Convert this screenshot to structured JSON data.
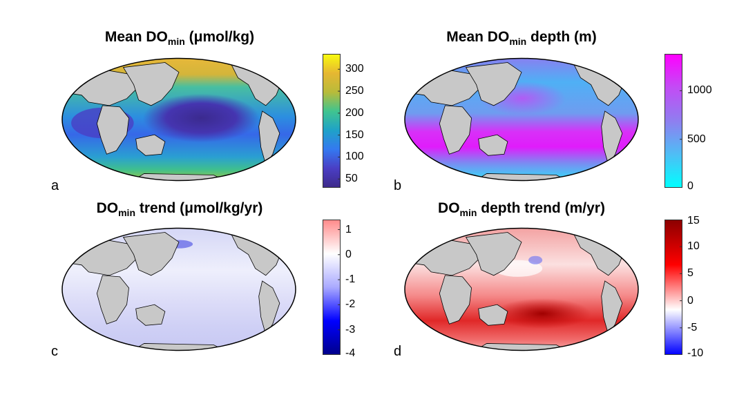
{
  "panels": [
    {
      "letter": "a",
      "title_pre": "Mean DO",
      "title_sub": "min",
      "title_post": " (μmol/kg)",
      "variable": "Mean DOmin",
      "units": "μmol/kg",
      "colorbar": {
        "ticks": [
          "300",
          "250",
          "200",
          "150",
          "100",
          "50"
        ],
        "min": 30,
        "max": 335,
        "tick_values": [
          300,
          250,
          200,
          150,
          100,
          50
        ],
        "colors": [
          "#f9fb0e",
          "#e6b732",
          "#b8bb3a",
          "#40c48f",
          "#1fa2c8",
          "#3479f0",
          "#4a3ec4",
          "#3e2a8a"
        ]
      }
    },
    {
      "letter": "b",
      "title_pre": "Mean DO",
      "title_sub": "min",
      "title_post": " depth (m)",
      "variable": "Mean DOmin depth",
      "units": "m",
      "colorbar": {
        "ticks": [
          "1000",
          "500",
          "0"
        ],
        "min": 0,
        "max": 1380,
        "tick_values": [
          1000,
          500,
          0
        ],
        "colors": [
          "#ff00ff",
          "#c24cf5",
          "#8f7ef0",
          "#4fbdf5",
          "#00ffff"
        ]
      }
    },
    {
      "letter": "c",
      "title_pre": "DO",
      "title_sub": "min",
      "title_post": " trend (μmol/kg/yr)",
      "variable": "DOmin trend",
      "units": "μmol/kg/yr",
      "colorbar": {
        "ticks": [
          "1",
          "0",
          "-1",
          "-2",
          "-3",
          "-4"
        ],
        "min": -4,
        "max": 1.4,
        "tick_values": [
          1,
          0,
          -1,
          -2,
          -3,
          -4
        ],
        "colors": [
          "#ff8a8a",
          "#ffffff",
          "#aaaaff",
          "#0000ff",
          "#00008b"
        ]
      }
    },
    {
      "letter": "d",
      "title_pre": "DO",
      "title_sub": "min",
      "title_post": " depth trend (m/yr)",
      "variable": "DOmin depth trend",
      "units": "m/yr",
      "colorbar": {
        "ticks": [
          "15",
          "10",
          "5",
          "0",
          "-5",
          "-10"
        ],
        "min": -10,
        "max": 15,
        "tick_values": [
          15,
          10,
          5,
          0,
          -5,
          -10
        ],
        "colors": [
          "#8b0000",
          "#ff0000",
          "#ffffff",
          "#0000ff"
        ]
      }
    }
  ]
}
